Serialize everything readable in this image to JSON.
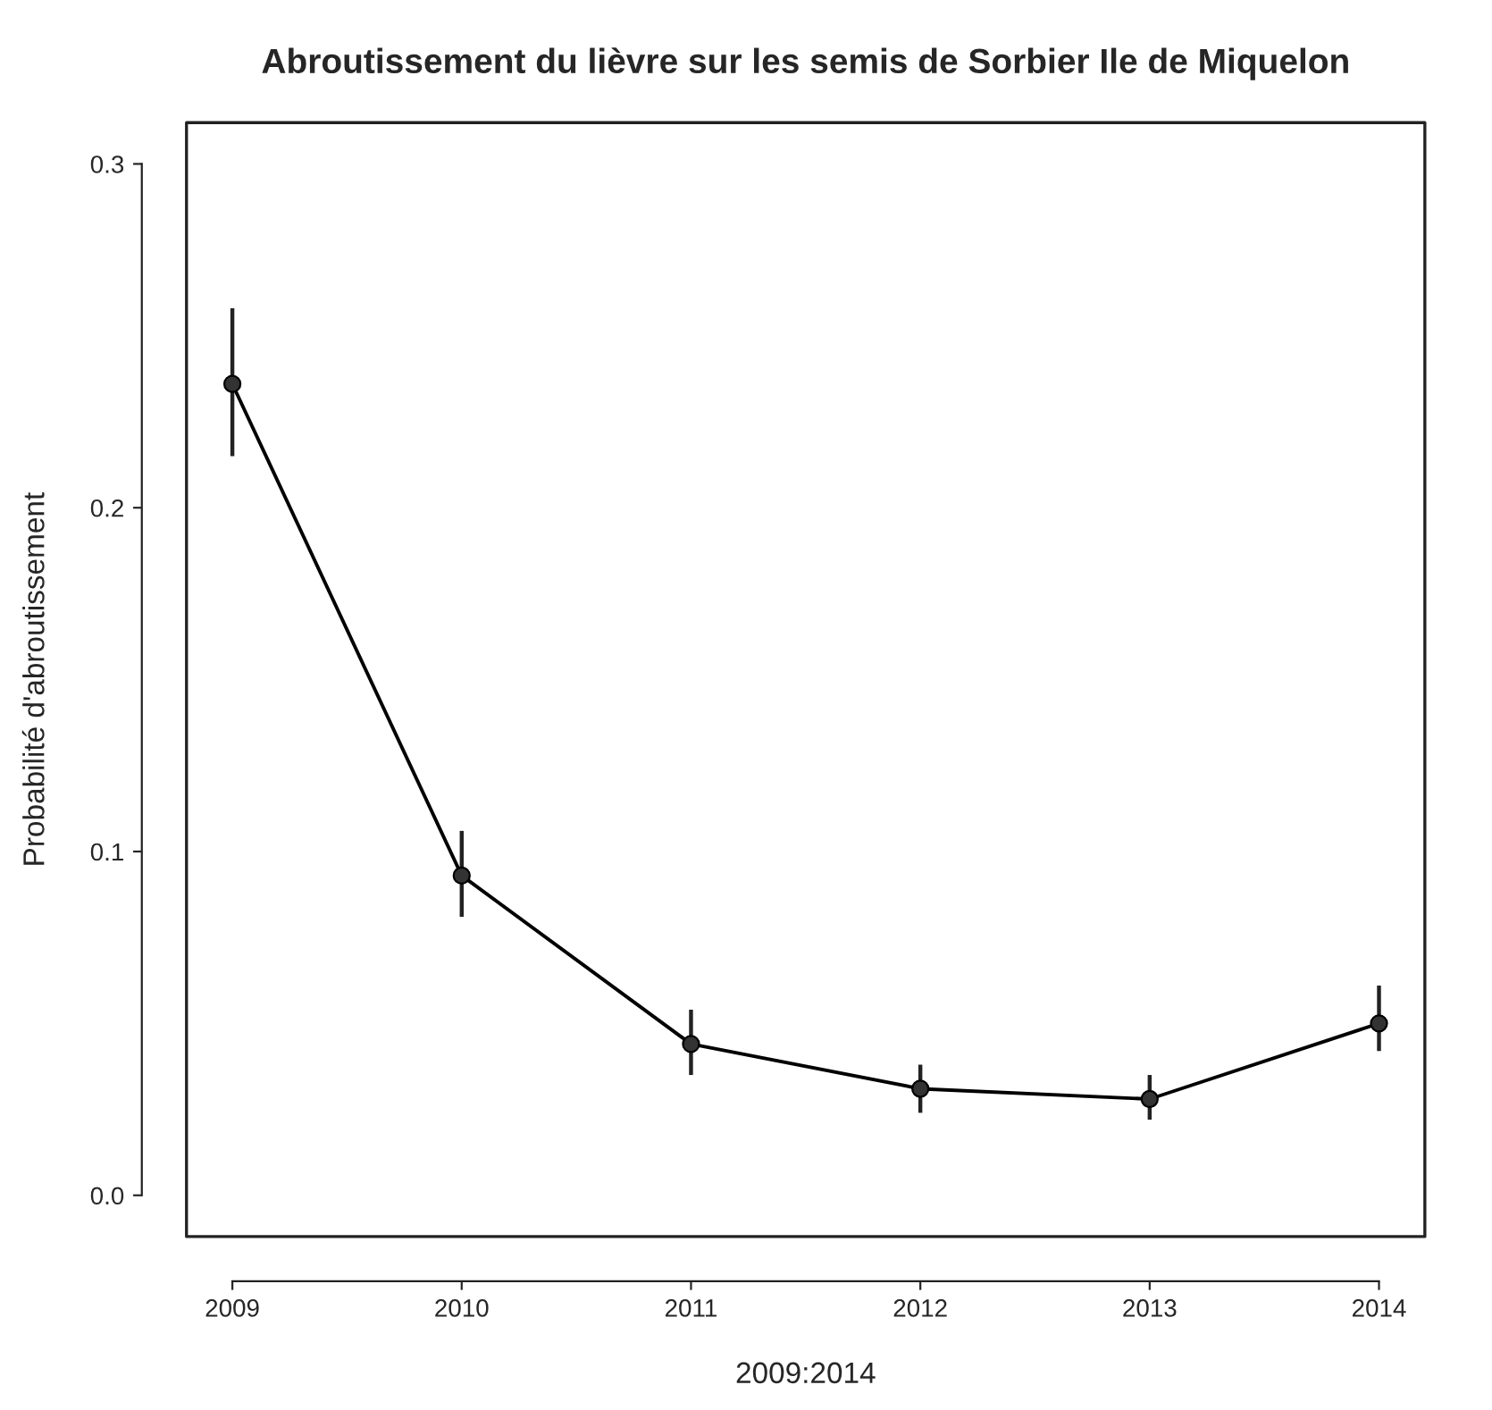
{
  "chart_data": {
    "type": "line",
    "title": "Abroutissement du lièvre sur les semis de Sorbier Ile de Miquelon",
    "xlabel": "2009:2014",
    "ylabel": "Probabilité d'abroutissement",
    "x": [
      2009,
      2010,
      2011,
      2012,
      2013,
      2014
    ],
    "series": [
      {
        "color": "#333333",
        "values": [
          0.236,
          0.093,
          0.044,
          0.031,
          0.028,
          0.05
        ],
        "errors": [
          [
            0.215,
            0.258
          ],
          [
            0.081,
            0.106
          ],
          [
            0.035,
            0.054
          ],
          [
            0.024,
            0.038
          ],
          [
            0.022,
            0.035
          ],
          [
            0.042,
            0.061
          ]
        ]
      }
    ],
    "xlim": [
      2008.8,
      2014.2
    ],
    "ylim": [
      -0.012,
      0.312
    ],
    "xticks": [
      2009,
      2010,
      2011,
      2012,
      2013,
      2014
    ],
    "yticks": [
      {
        "value": 0,
        "label": "0.0"
      },
      0.1,
      0.2,
      0.3
    ],
    "grid": false,
    "legend": false,
    "marker": "circle",
    "line_style": "solid"
  }
}
